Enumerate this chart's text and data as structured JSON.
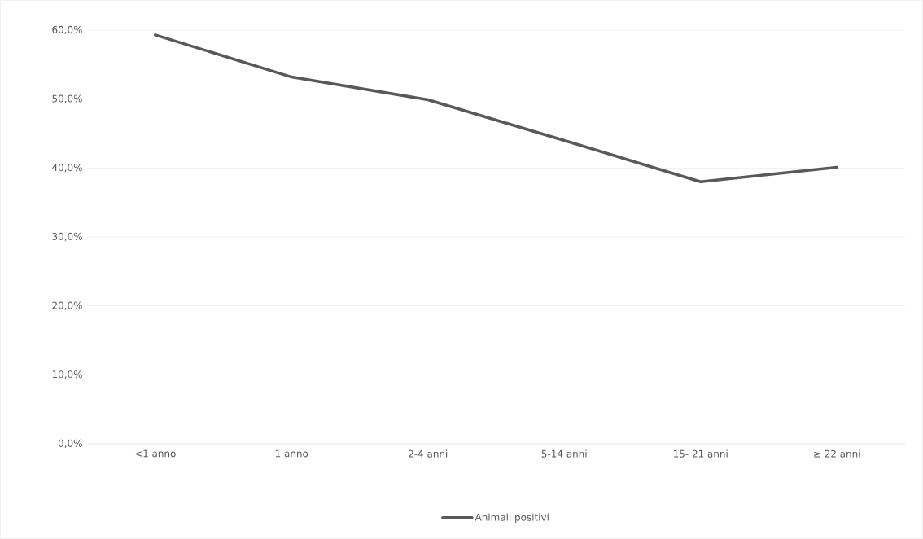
{
  "chart_data": {
    "type": "line",
    "categories": [
      "<1 anno",
      "1 anno",
      "2-4 anni",
      "5-14 anni",
      "15- 21 anni",
      "≥ 22 anni"
    ],
    "series": [
      {
        "name": "Animali positivi",
        "color": "#595959",
        "values": [
          59.3,
          53.2,
          49.9,
          44.0,
          38.0,
          40.1
        ]
      }
    ],
    "ylim": [
      0,
      60
    ],
    "yticks": [
      {
        "value": 0,
        "label": "0,0%"
      },
      {
        "value": 10,
        "label": "10,0%"
      },
      {
        "value": 20,
        "label": "20,0%"
      },
      {
        "value": 30,
        "label": "30,0%"
      },
      {
        "value": 40,
        "label": "40,0%"
      },
      {
        "value": 50,
        "label": "50,0%"
      },
      {
        "value": 60,
        "label": "60,0%"
      }
    ],
    "grid": "y",
    "legend": "bottom",
    "marker": "none",
    "line_style": "solid"
  }
}
